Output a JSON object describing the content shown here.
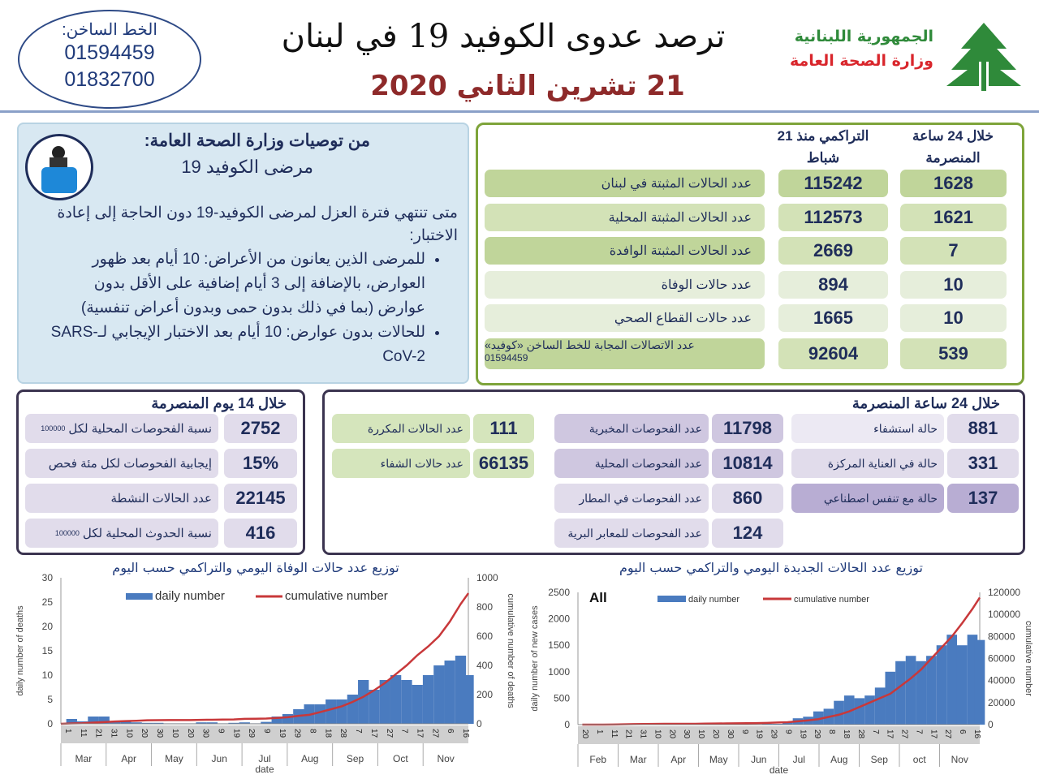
{
  "header": {
    "hotline_label": "الخط الساخن:",
    "hotline_numbers": [
      "01594459",
      "01832700"
    ],
    "title": "ترصد عدوى الكوفيد 19 في لبنان",
    "date": "21 تشرين الثاني 2020",
    "republic": "الجمهورية اللبنانية",
    "ministry": "وزارة الصحة العامة",
    "logo": "cedar-tree-logo",
    "colors": {
      "title_date": "#8e2a2a",
      "republic": "#2f8a3a",
      "ministry": "#d9262c"
    }
  },
  "recommendations": {
    "heading": "من توصيات وزارة الصحة العامة:",
    "subheading": "مرضى الكوفيد 19",
    "intro": "متى تنتهي فترة العزل لمرضى الكوفيد-19 دون الحاجة إلى إعادة الاختبار:",
    "bullets": [
      "للمرضى الذين يعانون من الأعراض: 10 أيام بعد ظهور العوارض، بالإضافة إلى 3 أيام إضافية على الأقل بدون عوارض (بما في ذلك بدون حمى وبدون أعراض تنفسية)",
      "للحالات بدون عوارض:  10 أيام بعد الاختبار الإيجابي لـSARS-CoV-2"
    ],
    "icon": "patient-isolation-icon"
  },
  "main_stats": {
    "col_24h": "خلال 24 ساعة المنصرمة",
    "col_cumulative": "التراكمي منذ 21 شباط",
    "rows": [
      {
        "label": "عدد الحالات المثبتة في لبنان",
        "cumulative": "115242",
        "last24h": "1628"
      },
      {
        "label": "عدد الحالات المثبتة المحلية",
        "cumulative": "112573",
        "last24h": "1621"
      },
      {
        "label": "عدد الحالات المثبتة الوافدة",
        "cumulative": "2669",
        "last24h": "7"
      },
      {
        "label": "عدد حالات الوفاة",
        "cumulative": "894",
        "last24h": "10"
      },
      {
        "label": "عدد حالات القطاع الصحي",
        "cumulative": "1665",
        "last24h": "10"
      },
      {
        "label": "عدد الاتصالات المجابة  للخط الساخن «كوفيد»",
        "sublabel": "01594459",
        "cumulative": "92604",
        "last24h": "539"
      }
    ]
  },
  "last14": {
    "heading": "خلال 14 يوم المنصرمة",
    "rows": [
      {
        "value": "2752",
        "label": "نسبة الفحوصات  المحلية لكل",
        "suffix": "100000"
      },
      {
        "value": "15%",
        "label": "إيجابية الفحوصات لكل مئة فحص"
      },
      {
        "value": "22145",
        "label": "عدد الحالات النشطة"
      },
      {
        "value": "416",
        "label": "نسبة الحدوث المحلية لكل",
        "suffix": "100000"
      }
    ]
  },
  "last24": {
    "heading": "خلال 24 ساعة المنصرمة",
    "hospital": [
      {
        "value": "881",
        "label": "حالة استشفاء"
      },
      {
        "value": "331",
        "label": "حالة في العناية المركزة"
      },
      {
        "value": "137",
        "label": "حالة مع تنفس اصطناعي"
      }
    ],
    "tests": [
      {
        "value": "11798",
        "label": "عدد الفحوصات المخبرية"
      },
      {
        "value": "10814",
        "label": "عدد الفحوصات المحلية"
      },
      {
        "value": "860",
        "label": "عدد الفحوصات في المطار"
      },
      {
        "value": "124",
        "label": "عدد الفحوصات للمعابر البرية"
      }
    ],
    "other": [
      {
        "value": "111",
        "label": "عدد الحالات المكررة"
      },
      {
        "value": "66135",
        "label": "عدد حالات الشفاء"
      }
    ]
  },
  "chart_data": [
    {
      "type": "bar+line",
      "title": "توزيع عدد حالات  الوفاة اليومي والتراكمي حسب اليوم",
      "xlabel": "date",
      "ylabel": "daily number of deaths",
      "y2label": "cumulative number of deaths",
      "ylim": [
        0,
        30
      ],
      "yticks": [
        0,
        5,
        10,
        15,
        20,
        25,
        30
      ],
      "y2lim": [
        0,
        1000
      ],
      "y2ticks": [
        0,
        200,
        400,
        600,
        800,
        1000
      ],
      "legend": [
        "daily number",
        "cumulative number"
      ],
      "legend_placement": "top",
      "colors": {
        "daily": "#4a7bbf",
        "cumulative": "#c8383a"
      },
      "x_range": [
        "2020-03-01",
        "2020-11-20"
      ],
      "day_ticks": [
        "1",
        "11",
        "21",
        "31",
        "10",
        "20",
        "30",
        "10",
        "20",
        "30",
        "9",
        "19",
        "29",
        "9",
        "19",
        "29",
        "8",
        "18",
        "28",
        "7",
        "17",
        "27",
        "7",
        "17",
        "27",
        "6",
        "16"
      ],
      "months": [
        "Mar",
        "Apr",
        "May",
        "Jun",
        "Jul",
        "Aug",
        "Sep",
        "Oct",
        "Nov"
      ],
      "x": [
        "2020-03-01",
        "2020-03-08",
        "2020-03-15",
        "2020-03-22",
        "2020-03-29",
        "2020-04-05",
        "2020-04-12",
        "2020-04-19",
        "2020-04-26",
        "2020-05-03",
        "2020-05-10",
        "2020-05-17",
        "2020-05-24",
        "2020-05-31",
        "2020-06-07",
        "2020-06-14",
        "2020-06-21",
        "2020-06-28",
        "2020-07-05",
        "2020-07-12",
        "2020-07-19",
        "2020-07-26",
        "2020-08-02",
        "2020-08-09",
        "2020-08-16",
        "2020-08-23",
        "2020-08-30",
        "2020-09-06",
        "2020-09-13",
        "2020-09-20",
        "2020-09-27",
        "2020-10-04",
        "2020-10-11",
        "2020-10-18",
        "2020-10-25",
        "2020-11-01",
        "2020-11-08",
        "2020-11-15",
        "2020-11-20"
      ],
      "daily": [
        0,
        1,
        0.5,
        1.5,
        1.5,
        0.5,
        0.5,
        0.3,
        0.2,
        0.2,
        0.1,
        0.1,
        0.1,
        0.3,
        0.3,
        0.1,
        0.2,
        0.3,
        0.1,
        0.4,
        1.5,
        2,
        3,
        4,
        4,
        5,
        5,
        6,
        9,
        7,
        9,
        10,
        9,
        8,
        10,
        12,
        13,
        14,
        10
      ],
      "cumulative": [
        0,
        3,
        4,
        8,
        12,
        16,
        19,
        21,
        24,
        25,
        26,
        26,
        26,
        27,
        28,
        29,
        30,
        34,
        35,
        36,
        40,
        45,
        55,
        62,
        80,
        100,
        120,
        150,
        185,
        230,
        280,
        340,
        400,
        470,
        530,
        600,
        700,
        820,
        894
      ]
    },
    {
      "type": "bar+line",
      "title": "توزيع عدد الحالات الجديدة اليومي والتراكمي حسب اليوم",
      "annotation": "All",
      "xlabel": "date",
      "ylabel": "daily number of new cases",
      "y2label": "cumulative number",
      "ylim": [
        0,
        2500
      ],
      "yticks": [
        0,
        500,
        1000,
        1500,
        2000,
        2500
      ],
      "y2lim": [
        0,
        120000
      ],
      "y2ticks": [
        0,
        20000,
        40000,
        60000,
        80000,
        100000,
        120000
      ],
      "legend": [
        "daily number",
        "cumulative number"
      ],
      "legend_placement": "top",
      "colors": {
        "daily": "#4a7bbf",
        "cumulative": "#c8383a"
      },
      "x_range": [
        "2020-02-20",
        "2020-11-20"
      ],
      "day_ticks": [
        "20",
        "1",
        "11",
        "21",
        "31",
        "10",
        "20",
        "30",
        "10",
        "20",
        "30",
        "9",
        "19",
        "29",
        "9",
        "19",
        "29",
        "8",
        "18",
        "28",
        "7",
        "17",
        "27",
        "7",
        "17",
        "27",
        "6",
        "16"
      ],
      "months": [
        "Feb",
        "Mar",
        "Apr",
        "May",
        "Jun",
        "Jul",
        "Aug",
        "Sep",
        "oct",
        "Nov"
      ],
      "x": [
        "2020-02-23",
        "2020-03-01",
        "2020-03-08",
        "2020-03-15",
        "2020-03-22",
        "2020-03-29",
        "2020-04-05",
        "2020-04-12",
        "2020-04-19",
        "2020-04-26",
        "2020-05-03",
        "2020-05-10",
        "2020-05-17",
        "2020-05-24",
        "2020-05-31",
        "2020-06-07",
        "2020-06-14",
        "2020-06-21",
        "2020-06-28",
        "2020-07-05",
        "2020-07-12",
        "2020-07-19",
        "2020-07-26",
        "2020-08-02",
        "2020-08-09",
        "2020-08-16",
        "2020-08-23",
        "2020-08-30",
        "2020-09-06",
        "2020-09-13",
        "2020-09-20",
        "2020-09-27",
        "2020-10-04",
        "2020-10-11",
        "2020-10-18",
        "2020-10-25",
        "2020-11-01",
        "2020-11-08",
        "2020-11-15",
        "2020-11-20"
      ],
      "daily": [
        0,
        2,
        5,
        10,
        20,
        15,
        10,
        5,
        5,
        2,
        2,
        5,
        20,
        10,
        10,
        15,
        10,
        10,
        15,
        15,
        50,
        120,
        150,
        250,
        300,
        450,
        550,
        500,
        550,
        700,
        1000,
        1200,
        1300,
        1200,
        1300,
        1500,
        1700,
        1500,
        1700,
        1600
      ],
      "cumulative": [
        0,
        10,
        40,
        120,
        300,
        450,
        550,
        650,
        700,
        720,
        740,
        780,
        900,
        1000,
        1100,
        1200,
        1300,
        1400,
        1600,
        1900,
        2200,
        3000,
        3900,
        5000,
        7000,
        9000,
        12000,
        16000,
        20000,
        24000,
        28000,
        35000,
        42000,
        50000,
        60000,
        70000,
        80000,
        92000,
        105000,
        115242
      ]
    }
  ]
}
